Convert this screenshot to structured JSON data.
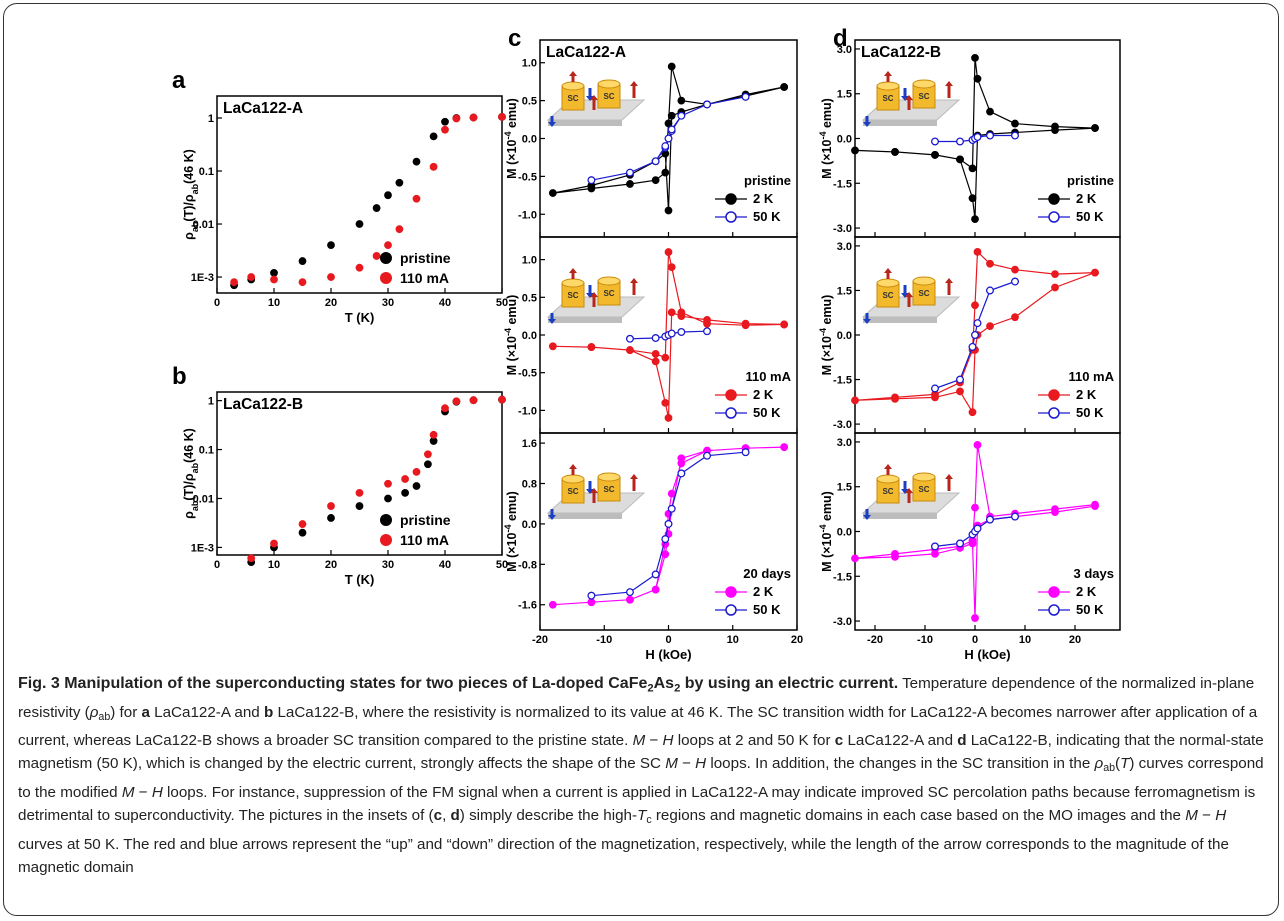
{
  "chart_data": [
    {
      "type": "scatter",
      "panel": "a",
      "title": "LaCa122-A",
      "y_label": [
        "ρ",
        "ab",
        "(T)/ρ",
        "ab",
        "(46 K)"
      ],
      "xlabel": "T (K)",
      "x": [
        3,
        6,
        10,
        15,
        20,
        25,
        28,
        30,
        32,
        35,
        38,
        40,
        42,
        45,
        50
      ],
      "series": [
        {
          "name": "pristine",
          "color": "#000000",
          "values": [
            0.0007,
            0.0009,
            0.0012,
            0.002,
            0.004,
            0.01,
            0.02,
            0.035,
            0.06,
            0.15,
            0.45,
            0.85,
            1.0,
            1.02,
            1.05
          ]
        },
        {
          "name": "110 mA",
          "color": "#e8191f",
          "values": [
            0.0008,
            0.001,
            0.0009,
            0.0008,
            0.001,
            0.0015,
            0.0025,
            0.004,
            0.008,
            0.03,
            0.12,
            0.6,
            0.98,
            1.02,
            1.05
          ]
        }
      ],
      "xlim": [
        0,
        50
      ],
      "xticks": [
        0,
        10,
        20,
        30,
        40,
        50
      ],
      "log_y": true,
      "ylim": [
        0.0005,
        2.6
      ],
      "yticks": [
        {
          "value": 0.001,
          "label": "1E-3"
        },
        0.01,
        0.1,
        1
      ],
      "legend": "lower right"
    },
    {
      "type": "scatter",
      "panel": "b",
      "title": "LaCa122-B",
      "y_label": [
        "ρ",
        "ab",
        "(T)/ρ",
        "ab",
        "(46 K)"
      ],
      "xlabel": "T (K)",
      "x": [
        6,
        10,
        15,
        20,
        25,
        30,
        33,
        35,
        37,
        38,
        40,
        42,
        45,
        50
      ],
      "series": [
        {
          "name": "pristine",
          "color": "#000000",
          "values": [
            0.0005,
            0.001,
            0.002,
            0.004,
            0.007,
            0.01,
            0.013,
            0.018,
            0.05,
            0.15,
            0.6,
            0.95,
            1.02,
            1.05
          ]
        },
        {
          "name": "110 mA",
          "color": "#e8191f",
          "values": [
            0.0006,
            0.0012,
            0.003,
            0.007,
            0.013,
            0.02,
            0.025,
            0.035,
            0.08,
            0.2,
            0.7,
            0.97,
            1.02,
            1.05
          ]
        }
      ],
      "xlim": [
        0,
        50
      ],
      "xticks": [
        0,
        10,
        20,
        30,
        40,
        50
      ],
      "log_y": true,
      "ylim": [
        0.0007,
        1.5
      ],
      "yticks": [
        {
          "value": 0.001,
          "label": "1E-3"
        },
        0.01,
        0.1,
        1
      ],
      "legend": "lower right"
    },
    {
      "type": "line",
      "panel": "c",
      "title": "LaCa122-A",
      "inset_label": "SC",
      "y_label": [
        "M (×10",
        "-4",
        " emu)"
      ],
      "legend_title": "pristine",
      "x": [
        18,
        12,
        6,
        2,
        0.5,
        0,
        -0.5,
        -2,
        -6,
        -12,
        -18,
        -12,
        -6,
        -2,
        -0.5,
        0,
        0.5,
        2,
        6,
        12,
        18
      ],
      "series": [
        {
          "name": "2 K",
          "color": "#000000",
          "values": [
            0.68,
            0.58,
            0.45,
            0.5,
            0.95,
            0.2,
            -0.45,
            -0.55,
            -0.6,
            -0.66,
            -0.72,
            -0.62,
            -0.48,
            -0.3,
            -0.2,
            -0.95,
            0.3,
            0.35,
            0.45,
            0.56,
            0.68
          ]
        },
        {
          "name": "50 K",
          "color": "#1a1ad0",
          "open": true,
          "values": [
            null,
            0.55,
            0.45,
            0.3,
            0.1,
            0,
            -0.12,
            -0.3,
            -0.45,
            -0.55,
            null,
            -0.55,
            -0.45,
            -0.3,
            -0.1,
            0,
            0.12,
            0.3,
            0.45,
            0.55,
            null
          ]
        }
      ],
      "xlim": [
        -20,
        20
      ],
      "xticks": [
        -20,
        -10,
        0,
        10,
        20
      ],
      "ylim": [
        -1.3,
        1.3
      ],
      "yticks": [
        {
          "value": -1,
          "label": "-1.0"
        },
        -0.5,
        {
          "value": 0,
          "label": "0.0"
        },
        0.5,
        {
          "value": 1,
          "label": "1.0"
        }
      ],
      "legend": "lower right"
    },
    {
      "type": "line",
      "inset_label": "SC",
      "y_label": [
        "M (×10",
        "-4",
        " emu)"
      ],
      "legend_title": "110 mA",
      "x": [
        18,
        12,
        6,
        2,
        0.5,
        0,
        -0.5,
        -2,
        -6,
        -12,
        -18,
        -12,
        -6,
        -2,
        -0.5,
        0,
        0.5,
        2,
        6,
        12,
        18
      ],
      "series": [
        {
          "name": "2 K",
          "color": "#e8191f",
          "values": [
            0.14,
            0.13,
            0.15,
            0.3,
            0.9,
            1.1,
            -0.3,
            -0.25,
            -0.2,
            -0.16,
            -0.15,
            -0.16,
            -0.2,
            -0.35,
            -0.9,
            -1.1,
            0.3,
            0.25,
            0.2,
            0.15,
            0.14
          ]
        },
        {
          "name": "50 K",
          "color": "#1a1ad0",
          "open": true,
          "values": [
            null,
            null,
            0.05,
            0.04,
            0.02,
            0,
            -0.02,
            -0.04,
            -0.05,
            null,
            null,
            null,
            -0.05,
            -0.04,
            -0.02,
            0,
            0.02,
            0.04,
            0.05,
            null,
            null
          ]
        }
      ],
      "xlim": [
        -20,
        20
      ],
      "xticks": [
        -20,
        -10,
        0,
        10,
        20
      ],
      "ylim": [
        -1.3,
        1.3
      ],
      "yticks": [
        {
          "value": -1,
          "label": "-1.0"
        },
        -0.5,
        {
          "value": 0,
          "label": "0.0"
        },
        0.5,
        {
          "value": 1,
          "label": "1.0"
        }
      ],
      "legend": "lower right"
    },
    {
      "type": "line",
      "inset_label": "SC",
      "y_label": [
        "M (×10",
        "-4",
        " emu)"
      ],
      "legend_title": "20 days",
      "xlabel": "H (kOe)",
      "x": [
        18,
        12,
        6,
        2,
        0.5,
        0,
        -0.5,
        -2,
        -6,
        -12,
        -18,
        -12,
        -6,
        -2,
        -0.5,
        0,
        0.5,
        2,
        6,
        12,
        18
      ],
      "series": [
        {
          "name": "2 K",
          "color": "#ff00ff",
          "values": [
            1.52,
            1.5,
            1.45,
            1.2,
            0.6,
            0.2,
            -0.4,
            -1.3,
            -1.5,
            -1.55,
            -1.6,
            -1.55,
            -1.5,
            -1.3,
            -0.6,
            -0.2,
            0.3,
            1.3,
            1.45,
            1.5,
            1.52
          ]
        },
        {
          "name": "50 K",
          "color": "#1a1ad0",
          "open": true,
          "values": [
            null,
            1.42,
            1.35,
            1.0,
            0.3,
            0,
            -0.3,
            -1.0,
            -1.35,
            -1.42,
            null,
            -1.42,
            -1.35,
            -1.0,
            -0.3,
            0,
            0.3,
            1.0,
            1.35,
            1.42,
            null
          ]
        }
      ],
      "xlim": [
        -20,
        20
      ],
      "xticks": [
        -20,
        -10,
        0,
        10,
        20
      ],
      "ylim": [
        -2.1,
        1.8
      ],
      "yticks": [
        -1.6,
        -0.8,
        {
          "value": 0,
          "label": "0.0"
        },
        0.8,
        1.6
      ],
      "legend": "lower right"
    },
    {
      "type": "line",
      "panel": "d",
      "title": "LaCa122-B",
      "inset_label": "SC",
      "y_label": [
        "M (×10",
        "-4",
        " emu)"
      ],
      "legend_title": "pristine",
      "x": [
        24,
        16,
        8,
        3,
        0.5,
        0,
        -0.5,
        -3,
        -8,
        -16,
        -24,
        -16,
        -8,
        -3,
        -0.5,
        0,
        0.5,
        3,
        8,
        16,
        24
      ],
      "series": [
        {
          "name": "2 K",
          "color": "#000000",
          "values": [
            0.35,
            0.4,
            0.5,
            0.9,
            2.0,
            2.7,
            -1.0,
            -0.7,
            -0.55,
            -0.45,
            -0.4,
            -0.45,
            -0.55,
            -0.7,
            -2.0,
            -2.7,
            0.1,
            0.15,
            0.2,
            0.28,
            0.35
          ]
        },
        {
          "name": "50 K",
          "color": "#1a1ad0",
          "open": true,
          "values": [
            null,
            null,
            0.1,
            0.1,
            0.05,
            0,
            -0.05,
            -0.1,
            -0.1,
            null,
            null,
            null,
            -0.1,
            -0.1,
            -0.05,
            0,
            0.05,
            0.1,
            0.1,
            null,
            null
          ]
        }
      ],
      "xlim": [
        -24,
        29
      ],
      "xticks": [
        -20,
        -10,
        0,
        10,
        20
      ],
      "ylim": [
        -3.3,
        3.3
      ],
      "yticks": [
        {
          "value": -3,
          "label": "-3.0"
        },
        -1.5,
        {
          "value": 0,
          "label": "0.0"
        },
        1.5,
        {
          "value": 3,
          "label": "3.0"
        }
      ],
      "legend": "lower right"
    },
    {
      "type": "line",
      "inset_label": "SC",
      "y_label": [
        "M (×10",
        "-4",
        " emu)"
      ],
      "legend_title": "110 mA",
      "x": [
        24,
        16,
        8,
        3,
        0.5,
        0,
        -0.5,
        -3,
        -8,
        -16,
        -24,
        -16,
        -8,
        -3,
        -0.5,
        0,
        0.5,
        3,
        8,
        16,
        24
      ],
      "series": [
        {
          "name": "2 K",
          "color": "#e8191f",
          "values": [
            2.1,
            2.05,
            2.2,
            2.4,
            2.8,
            1.0,
            -0.5,
            -1.6,
            -2.0,
            -2.1,
            -2.2,
            -2.15,
            -2.1,
            -1.9,
            -2.6,
            -0.5,
            0.0,
            0.3,
            0.6,
            1.6,
            2.1
          ]
        },
        {
          "name": "50 K",
          "color": "#1a1ad0",
          "open": true,
          "values": [
            null,
            null,
            1.8,
            1.5,
            0.4,
            0,
            -0.4,
            -1.5,
            -1.8,
            null,
            null,
            null,
            -1.8,
            -1.5,
            -0.4,
            0,
            0.4,
            1.5,
            1.8,
            null,
            null
          ]
        }
      ],
      "xlim": [
        -24,
        29
      ],
      "xticks": [
        -20,
        -10,
        0,
        10,
        20
      ],
      "ylim": [
        -3.3,
        3.3
      ],
      "yticks": [
        {
          "value": -3,
          "label": "-3.0"
        },
        -1.5,
        {
          "value": 0,
          "label": "0.0"
        },
        1.5,
        {
          "value": 3,
          "label": "3.0"
        }
      ],
      "legend": "lower right"
    },
    {
      "type": "line",
      "inset_label": "SC",
      "y_label": [
        "M (×10",
        "-4",
        " emu)"
      ],
      "legend_title": "3 days",
      "xlabel": "H (kOe)",
      "x": [
        24,
        16,
        8,
        3,
        0.5,
        0,
        -0.5,
        -3,
        -8,
        -16,
        -24,
        -16,
        -8,
        -3,
        -0.5,
        0,
        0.5,
        3,
        8,
        16,
        24
      ],
      "series": [
        {
          "name": "2 K",
          "color": "#ff00ff",
          "values": [
            0.9,
            0.75,
            0.6,
            0.5,
            2.9,
            0.8,
            -0.3,
            -0.5,
            -0.6,
            -0.75,
            -0.9,
            -0.85,
            -0.75,
            -0.55,
            -0.4,
            -2.9,
            0.2,
            0.4,
            0.5,
            0.65,
            0.85
          ]
        },
        {
          "name": "50 K",
          "color": "#1a1ad0",
          "open": true,
          "values": [
            null,
            null,
            0.5,
            0.4,
            0.1,
            0,
            -0.1,
            -0.4,
            -0.5,
            null,
            null,
            null,
            -0.5,
            -0.4,
            -0.1,
            0,
            0.1,
            0.4,
            0.5,
            null,
            null
          ]
        }
      ],
      "xlim": [
        -24,
        29
      ],
      "xticks": [
        -20,
        -10,
        0,
        10,
        20
      ],
      "ylim": [
        -3.3,
        3.3
      ],
      "yticks": [
        {
          "value": -3,
          "label": "-3.0"
        },
        -1.5,
        {
          "value": 0,
          "label": "0.0"
        },
        1.5,
        {
          "value": 3,
          "label": "3.0"
        }
      ],
      "legend": "lower right"
    }
  ],
  "caption": {
    "title": [
      "Fig. 3 Manipulation of the superconducting states for two pieces of La-doped CaFe",
      "2",
      "As",
      "2",
      " by using an electric current."
    ],
    "body": [
      "Temperature dependence of the normalized in-plane resistivity (",
      "ρ",
      "ab",
      ") for ",
      "a",
      " LaCa122-A and ",
      "b",
      " LaCa122-B, where the resistivity is normalized to its value at 46 K. The SC transition width for LaCa122-A becomes narrower after application of a current, whereas LaCa122-B shows a broader SC transition compared to the pristine state. ",
      "M",
      " − ",
      "H",
      " loops at 2 and 50 K for ",
      "c",
      " LaCa122-A and ",
      "d",
      " LaCa122-B, indicating that the normal-state magnetism (50 K), which is changed by the electric current, strongly affects the shape of the SC ",
      "M",
      " − ",
      "H",
      " loops. In addition, the changes in the SC transition in the ",
      "ρ",
      "ab",
      "(",
      "T",
      ") curves correspond to the modified ",
      "M",
      " − ",
      "H",
      " loops. For instance, suppression of the FM signal when a current is applied in LaCa122-A may indicate improved SC percolation paths because ferromagnetism is detrimental to superconductivity. The pictures in the insets of (",
      "c",
      ", ",
      "d",
      ") simply describe the high-",
      "T",
      "c",
      " regions and magnetic domains in each case based on the MO images and the ",
      "M",
      " − ",
      "H",
      " curves at 50 K. The red and blue arrows represent the “up” and “down” direction of the magnetization, respectively, while the length of the arrow corresponds to the magnitude of the magnetic domain"
    ]
  }
}
